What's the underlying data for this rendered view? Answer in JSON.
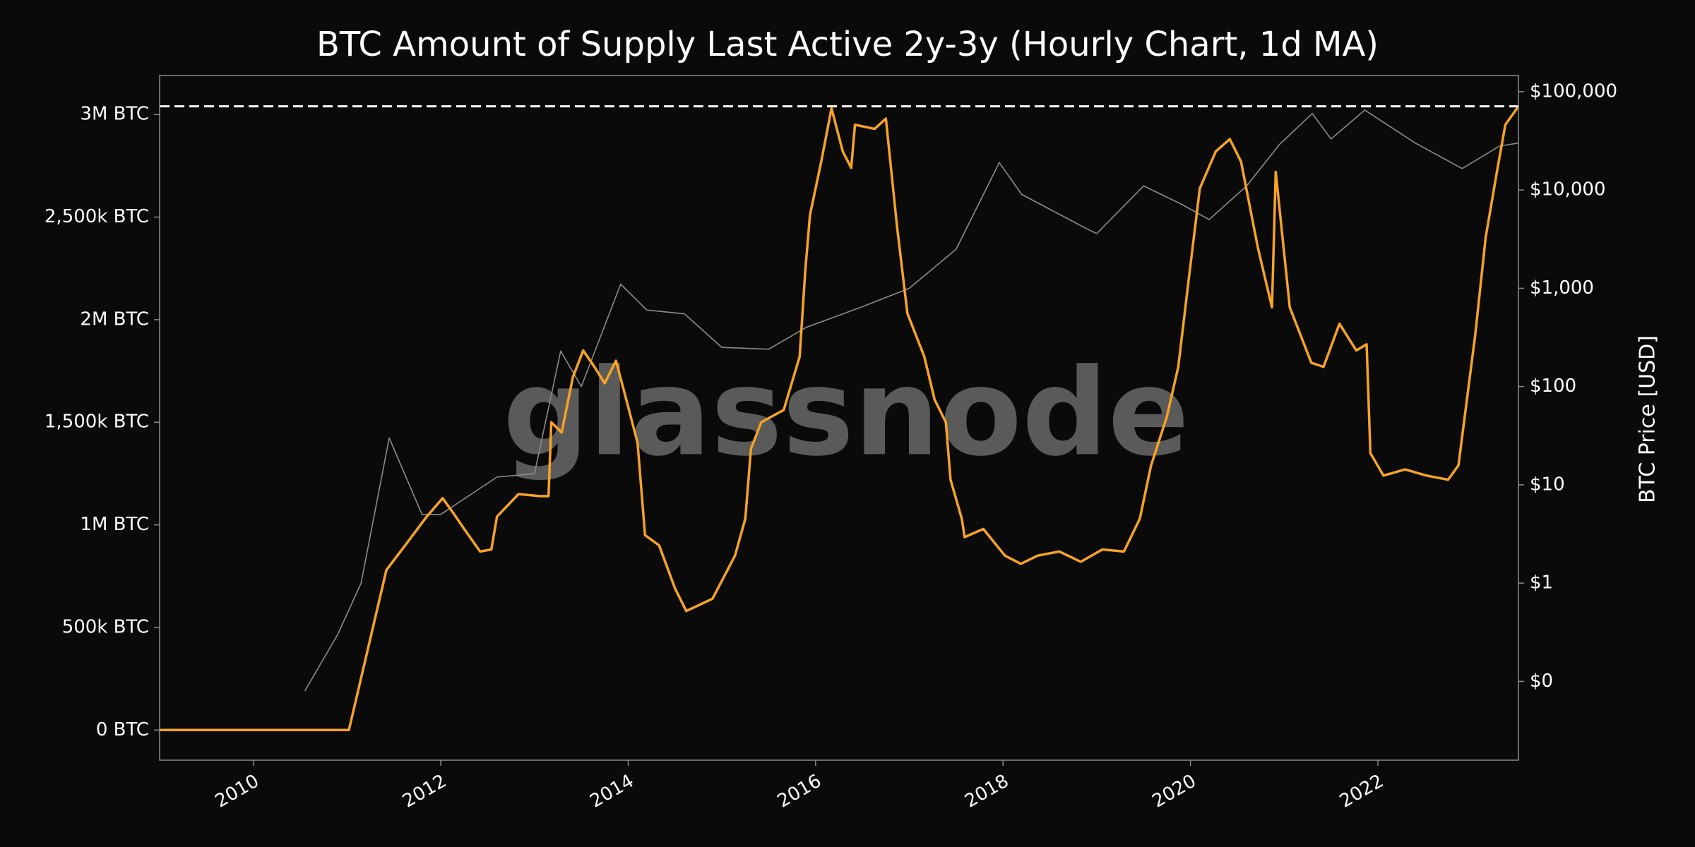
{
  "chart_data": {
    "type": "line",
    "title": "BTC Amount of Supply Last Active 2y-3y (Hourly Chart, 1d MA)",
    "watermark": "glassnode",
    "y2label": "BTC Price [USD]",
    "xlim": [
      2009.0,
      2023.5
    ],
    "xticks": [
      2010,
      2012,
      2014,
      2016,
      2018,
      2020,
      2022
    ],
    "ylim": [
      -147000,
      3190000
    ],
    "yticks": [
      {
        "value": 0,
        "label": "0 BTC"
      },
      {
        "value": 500000,
        "label": "500k BTC"
      },
      {
        "value": 1000000,
        "label": "1M BTC"
      },
      {
        "value": 1500000,
        "label": "1,500k BTC"
      },
      {
        "value": 2000000,
        "label": "2M BTC"
      },
      {
        "value": 2500000,
        "label": "2,500k BTC"
      },
      {
        "value": 3000000,
        "label": "3M BTC"
      }
    ],
    "y2lim": [
      0.0158,
      146000
    ],
    "y2log": true,
    "y2ticks": [
      {
        "value": 0.1,
        "label": "$0"
      },
      {
        "value": 1,
        "label": "$1"
      },
      {
        "value": 10,
        "label": "$10"
      },
      {
        "value": 100,
        "label": "$100"
      },
      {
        "value": 1000,
        "label": "$1,000"
      },
      {
        "value": 10000,
        "label": "$10,000"
      },
      {
        "value": 100000,
        "label": "$100,000"
      }
    ],
    "grid": false,
    "hline": {
      "value": 3040000,
      "color": "#ffffff",
      "dashed": true
    },
    "series": [
      {
        "color": "#8c8c8c",
        "axis": "y2",
        "x": [
          2010.55,
          2010.9,
          2011.15,
          2011.45,
          2011.8,
          2012.0,
          2012.6,
          2013.0,
          2013.28,
          2013.5,
          2013.92,
          2014.2,
          2014.6,
          2015.0,
          2015.5,
          2015.9,
          2016.5,
          2017.0,
          2017.5,
          2017.96,
          2018.2,
          2018.9,
          2019.0,
          2019.5,
          2019.9,
          2020.2,
          2020.6,
          2020.95,
          2021.3,
          2021.5,
          2021.86,
          2022.4,
          2022.9,
          2023.3,
          2023.5
        ],
        "values": [
          0.08,
          0.3,
          1,
          30,
          5,
          5,
          12,
          13,
          230,
          100,
          1100,
          600,
          550,
          250,
          240,
          400,
          650,
          1000,
          2500,
          19000,
          9000,
          4000,
          3600,
          11000,
          7200,
          5000,
          11000,
          29000,
          60000,
          33000,
          65000,
          30000,
          16500,
          28000,
          30000
        ]
      },
      {
        "color": "#f7a325",
        "axis": "y",
        "x": [
          2009.0,
          2011.02,
          2011.42,
          2011.62,
          2011.85,
          2012.02,
          2012.13,
          2012.25,
          2012.42,
          2012.54,
          2012.6,
          2012.83,
          2013.06,
          2013.15,
          2013.18,
          2013.29,
          2013.41,
          2013.52,
          2013.64,
          2013.75,
          2013.87,
          2013.98,
          2014.1,
          2014.18,
          2014.33,
          2014.5,
          2014.62,
          2014.9,
          2015.14,
          2015.25,
          2015.31,
          2015.42,
          2015.66,
          2015.83,
          2015.89,
          2015.94,
          2016.06,
          2016.17,
          2016.29,
          2016.38,
          2016.42,
          2016.63,
          2016.75,
          2016.87,
          2016.98,
          2017.16,
          2017.27,
          2017.39,
          2017.44,
          2017.56,
          2017.59,
          2017.79,
          2018.02,
          2018.19,
          2018.37,
          2018.6,
          2018.83,
          2019.06,
          2019.29,
          2019.46,
          2019.58,
          2019.75,
          2019.87,
          2019.98,
          2020.1,
          2020.27,
          2020.42,
          2020.54,
          2020.72,
          2020.87,
          2020.91,
          2021.06,
          2021.29,
          2021.42,
          2021.59,
          2021.77,
          2021.88,
          2021.92,
          2022.06,
          2022.29,
          2022.52,
          2022.75,
          2022.86,
          2022.95,
          2023.04,
          2023.15,
          2023.27,
          2023.36,
          2023.5
        ],
        "values": [
          0,
          0,
          780000,
          900000,
          1040000,
          1130000,
          1060000,
          980000,
          870000,
          880000,
          1040000,
          1150000,
          1140000,
          1140000,
          1500000,
          1450000,
          1720000,
          1850000,
          1770000,
          1690000,
          1800000,
          1610000,
          1400000,
          950000,
          900000,
          690000,
          580000,
          640000,
          850000,
          1030000,
          1370000,
          1500000,
          1560000,
          1820000,
          2240000,
          2510000,
          2770000,
          3030000,
          2820000,
          2740000,
          2950000,
          2930000,
          2980000,
          2450000,
          2030000,
          1820000,
          1610000,
          1500000,
          1220000,
          1030000,
          940000,
          980000,
          850000,
          810000,
          850000,
          870000,
          820000,
          880000,
          870000,
          1030000,
          1290000,
          1530000,
          1770000,
          2190000,
          2640000,
          2820000,
          2880000,
          2770000,
          2350000,
          2060000,
          2720000,
          2060000,
          1790000,
          1770000,
          1980000,
          1850000,
          1880000,
          1350000,
          1240000,
          1270000,
          1240000,
          1220000,
          1290000,
          1610000,
          1930000,
          2400000,
          2720000,
          2950000,
          3040000
        ]
      }
    ]
  }
}
